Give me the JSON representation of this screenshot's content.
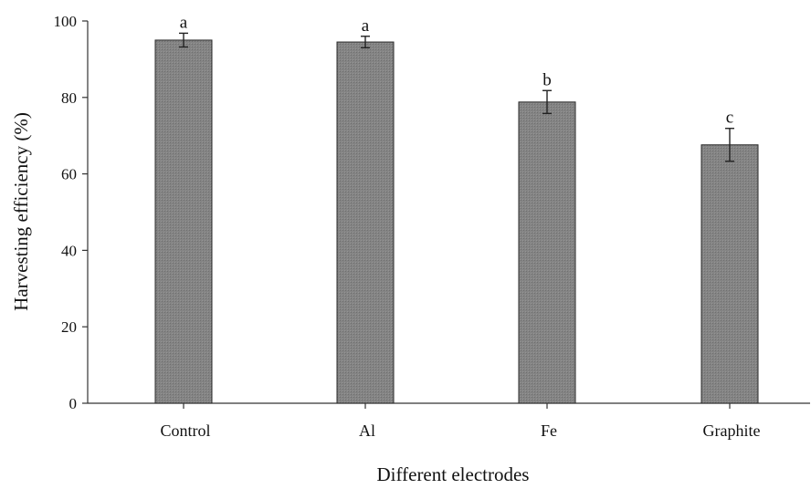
{
  "chart_data": {
    "type": "bar",
    "title": "",
    "xlabel": "Different electrodes",
    "ylabel": "Harvesting efficiency (%)",
    "ylim": [
      0,
      100
    ],
    "yticks": [
      0,
      20,
      40,
      60,
      80,
      100
    ],
    "grid": false,
    "categories": [
      "Control",
      "Al",
      "Fe",
      "Graphite"
    ],
    "values": [
      95,
      94.5,
      78.8,
      67.6
    ],
    "errors": [
      1.8,
      1.5,
      3.0,
      4.3
    ],
    "significance": [
      "a",
      "a",
      "b",
      "c"
    ],
    "bar_color": "#848484"
  }
}
